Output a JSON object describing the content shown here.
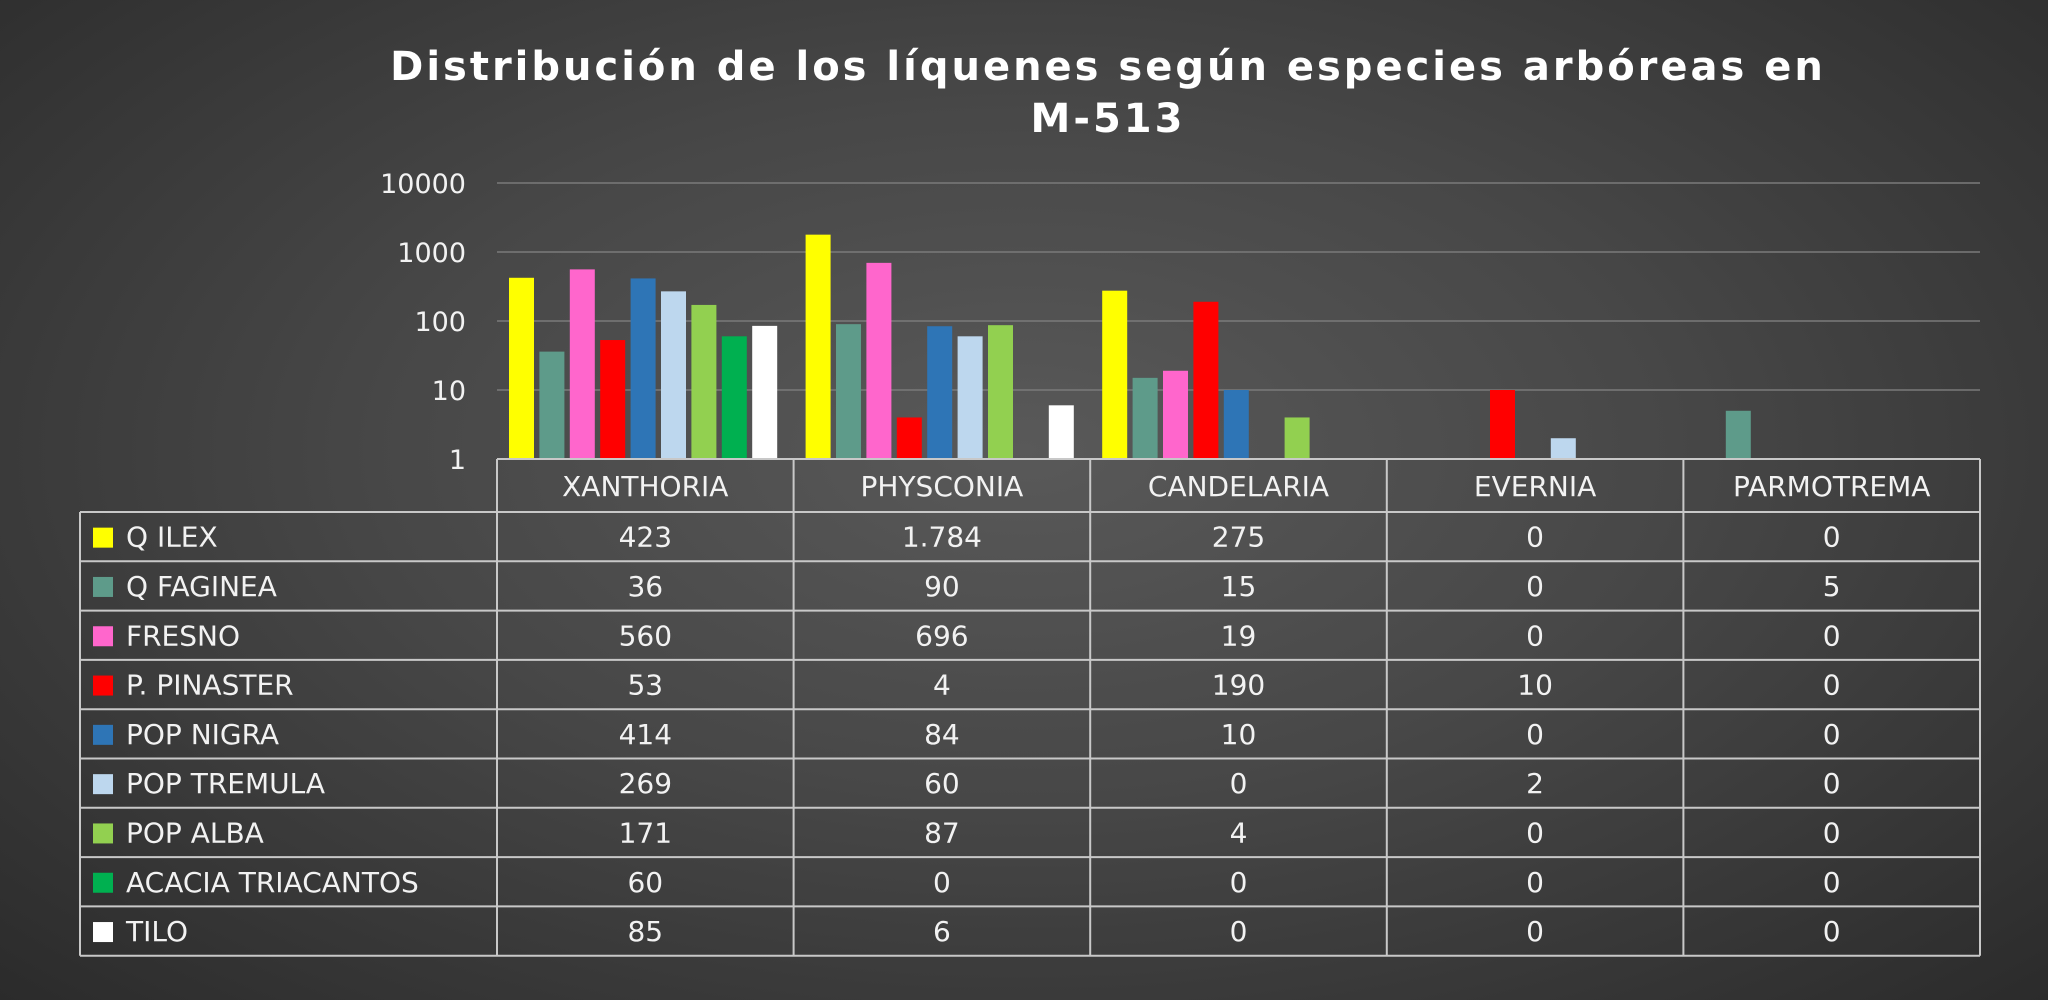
{
  "chart_data": {
    "type": "bar",
    "title": "Distribución de los líquenes según especies arbóreas en M-513",
    "title_lines": [
      "Distribución de los líquenes según especies arbóreas en",
      "M-513"
    ],
    "y_scale": "log",
    "ylim": [
      1,
      10000
    ],
    "y_ticks": [
      "1",
      "10",
      "100",
      "1000",
      "10000"
    ],
    "grid": true,
    "legend": "data-table",
    "categories": [
      "XANTHORIA",
      "PHYSCONIA",
      "CANDELARIA",
      "EVERNIA",
      "PARMOTREMA"
    ],
    "series": [
      {
        "name": "Q ILEX",
        "color": "#ffff00",
        "values": [
          423,
          1784,
          275,
          0,
          0
        ],
        "labels": [
          "423",
          "1.784",
          "275",
          "0",
          "0"
        ]
      },
      {
        "name": "Q FAGINEA",
        "color": "#5e9b8a",
        "values": [
          36,
          90,
          15,
          0,
          5
        ],
        "labels": [
          "36",
          "90",
          "15",
          "0",
          "5"
        ]
      },
      {
        "name": "FRESNO",
        "color": "#ff66cc",
        "values": [
          560,
          696,
          19,
          0,
          0
        ],
        "labels": [
          "560",
          "696",
          "19",
          "0",
          "0"
        ]
      },
      {
        "name": "P. PINASTER",
        "color": "#ff0000",
        "values": [
          53,
          4,
          190,
          10,
          0
        ],
        "labels": [
          "53",
          "4",
          "190",
          "10",
          "0"
        ]
      },
      {
        "name": "POP NIGRA",
        "color": "#2e75b6",
        "values": [
          414,
          84,
          10,
          0,
          0
        ],
        "labels": [
          "414",
          "84",
          "10",
          "0",
          "0"
        ]
      },
      {
        "name": "POP TREMULA",
        "color": "#bdd7ee",
        "values": [
          269,
          60,
          0,
          2,
          0
        ],
        "labels": [
          "269",
          "60",
          "0",
          "2",
          "0"
        ]
      },
      {
        "name": "POP ALBA",
        "color": "#92d050",
        "values": [
          171,
          87,
          4,
          0,
          0
        ],
        "labels": [
          "171",
          "87",
          "4",
          "0",
          "0"
        ]
      },
      {
        "name": "ACACIA TRIACANTOS",
        "color": "#00b050",
        "values": [
          60,
          0,
          0,
          0,
          0
        ],
        "labels": [
          "60",
          "0",
          "0",
          "0",
          "0"
        ]
      },
      {
        "name": "TILO",
        "color": "#ffffff",
        "values": [
          85,
          6,
          0,
          0,
          0
        ],
        "labels": [
          "85",
          "6",
          "0",
          "0",
          "0"
        ]
      }
    ]
  }
}
